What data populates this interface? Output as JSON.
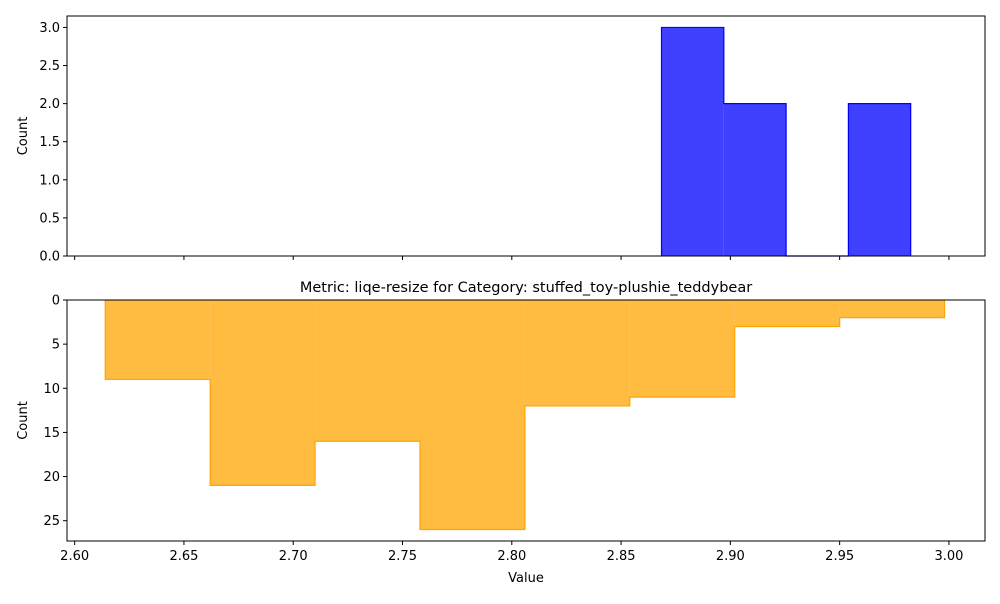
{
  "chart_data": [
    {
      "type": "bar",
      "title": "",
      "xlabel": "",
      "ylabel": "Count",
      "color": "#0000ff",
      "xlim": [
        2.5965,
        3.0165
      ],
      "ylim": [
        0,
        3.15
      ],
      "yticks": [
        0.0,
        0.5,
        1.0,
        1.5,
        2.0,
        2.5,
        3.0
      ],
      "ytick_labels": [
        "0.0",
        "0.5",
        "1.0",
        "1.5",
        "2.0",
        "2.5",
        "3.0"
      ],
      "xticks": [
        2.6,
        2.65,
        2.7,
        2.75,
        2.8,
        2.85,
        2.9,
        2.95,
        3.0
      ],
      "bin_edges": [
        2.8685,
        2.897,
        2.9255,
        2.954,
        2.9825
      ],
      "counts": [
        3,
        2,
        0,
        2
      ],
      "grid": false
    },
    {
      "type": "bar",
      "title": "Metric: liqe-resize for Category: stuffed_toy-plushie_teddybear",
      "xlabel": "Value",
      "ylabel": "Count",
      "color": "#ffa500",
      "inverted_y": true,
      "xlim": [
        2.5965,
        3.0165
      ],
      "ylim": [
        0,
        27.3
      ],
      "yticks": [
        0,
        5,
        10,
        15,
        20,
        25
      ],
      "ytick_labels": [
        "0",
        "5",
        "10",
        "15",
        "20",
        "25"
      ],
      "xticks": [
        2.6,
        2.65,
        2.7,
        2.75,
        2.8,
        2.85,
        2.9,
        2.95,
        3.0
      ],
      "xtick_labels": [
        "2.60",
        "2.65",
        "2.70",
        "2.75",
        "2.80",
        "2.85",
        "2.90",
        "2.95",
        "3.00"
      ],
      "bin_edges": [
        2.614,
        2.662,
        2.71,
        2.758,
        2.806,
        2.854,
        2.902,
        2.95,
        2.998
      ],
      "counts": [
        9,
        21,
        16,
        26,
        12,
        11,
        3,
        2
      ],
      "grid": false
    }
  ]
}
